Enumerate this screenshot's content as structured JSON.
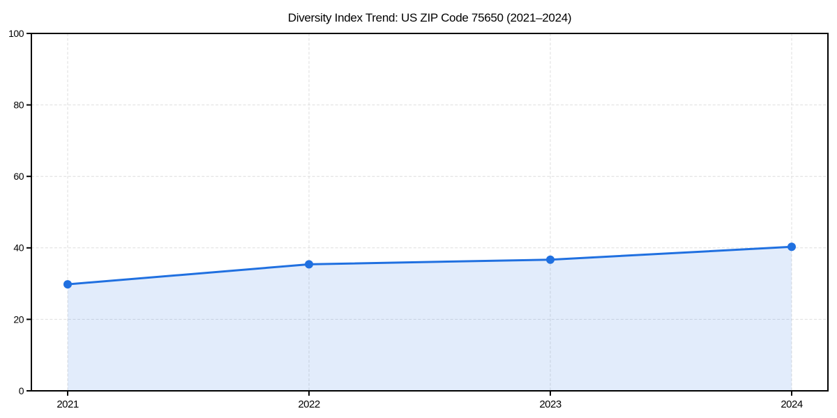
{
  "page": {
    "background_color": "#ffffff"
  },
  "chart_data": {
    "type": "area",
    "title": "Diversity Index Trend: US ZIP Code 75650 (2021–2024)",
    "series_name": "Diversity Index",
    "categories": [
      "2021",
      "2022",
      "2023",
      "2024"
    ],
    "values": [
      29.8,
      35.4,
      36.7,
      40.3
    ],
    "xlabel": "",
    "ylabel": "",
    "ylim": [
      0,
      100
    ],
    "yticks": [
      0,
      20,
      40,
      60,
      80,
      100
    ],
    "legend_position": "none",
    "grid": {
      "visible": true,
      "style": "dashed",
      "axes": "both",
      "color": "#dedede"
    },
    "marker": "circle",
    "colors": {
      "line": "#2070e0",
      "marker": "#2070e0",
      "fill": "#2070e0",
      "fill_opacity": 0.13,
      "spine": "#000000",
      "text": "#000000",
      "background": "#ffffff"
    }
  }
}
